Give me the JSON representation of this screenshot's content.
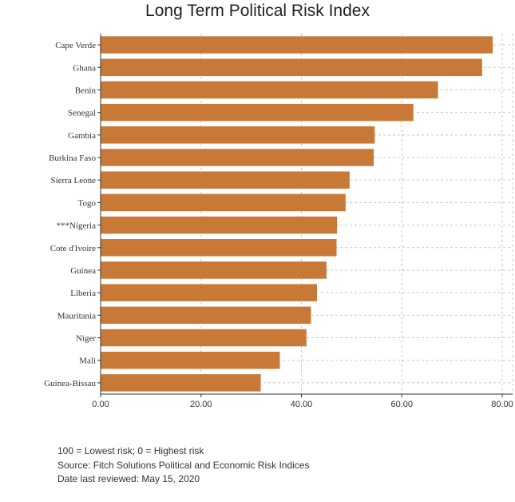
{
  "chart_data": {
    "type": "bar",
    "orientation": "horizontal",
    "title": "Long Term Political Risk Index",
    "categories": [
      "Cape Verde",
      "Ghana",
      "Benin",
      "Senegal",
      "Gambia",
      "Burkina Faso",
      "Sierra Leone",
      "Togo",
      "***Nigeria",
      "Cote d'Ivoire",
      "Guinea",
      "Liberia",
      "Mauritania",
      "Niger",
      "Mali",
      "Guinea-Bissau"
    ],
    "values": [
      78.1,
      76.0,
      67.2,
      62.3,
      54.6,
      54.4,
      49.6,
      48.8,
      47.1,
      47.0,
      45.0,
      43.1,
      41.9,
      41.0,
      35.7,
      31.9
    ],
    "xticks": [
      "0.00",
      "20.00",
      "40.00",
      "60.00",
      "80.00"
    ],
    "xlim": [
      0,
      80
    ],
    "xlabel": "",
    "ylabel": "",
    "grid": true,
    "bar_color": "#c97937"
  },
  "notes": [
    "100 = Lowest risk; 0 = Highest risk",
    "Source: Fitch Solutions Political and Economic Risk Indices",
    "Date last reviewed: May 15, 2020"
  ]
}
